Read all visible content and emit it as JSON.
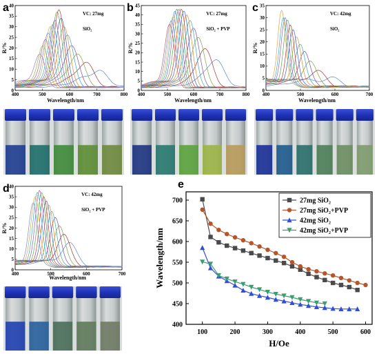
{
  "figure": {
    "panel_letters": [
      "a",
      "b",
      "c",
      "d",
      "e"
    ]
  },
  "chart_data": [
    {
      "id": "a",
      "type": "line",
      "annotation_line1": "VC: 27mg",
      "annotation_line2": "SiO₂",
      "xlabel": "Wavelength/nm",
      "ylabel": "R/%",
      "xlim": [
        400,
        800
      ],
      "ylim": [
        0,
        40
      ],
      "xticks": [
        "400",
        "500",
        "600",
        "700",
        "800"
      ],
      "yticks": [
        "0",
        "5",
        "10",
        "15",
        "20",
        "25",
        "30",
        "35",
        "40"
      ],
      "peaks": [
        {
          "x": 700,
          "y": 9,
          "w": 55
        },
        {
          "x": 655,
          "y": 13,
          "w": 45
        },
        {
          "x": 625,
          "y": 17,
          "w": 40
        },
        {
          "x": 605,
          "y": 21,
          "w": 36
        },
        {
          "x": 590,
          "y": 26,
          "w": 33
        },
        {
          "x": 578,
          "y": 30,
          "w": 30
        },
        {
          "x": 568,
          "y": 34,
          "w": 28
        },
        {
          "x": 560,
          "y": 38,
          "w": 26
        },
        {
          "x": 553,
          "y": 37,
          "w": 26
        },
        {
          "x": 545,
          "y": 33,
          "w": 26
        },
        {
          "x": 537,
          "y": 31,
          "w": 26
        },
        {
          "x": 528,
          "y": 30,
          "w": 26
        },
        {
          "x": 520,
          "y": 27,
          "w": 26
        },
        {
          "x": 510,
          "y": 24,
          "w": 26
        },
        {
          "x": 500,
          "y": 21,
          "w": 26
        },
        {
          "x": 488,
          "y": 17,
          "w": 28
        }
      ]
    },
    {
      "id": "b",
      "type": "line",
      "annotation_line1": "VC: 27mg",
      "annotation_line2": "SiO₂ + PVP",
      "xlabel": "Wavelength/nm",
      "ylabel": "R/%",
      "xlim": [
        400,
        800
      ],
      "ylim": [
        0,
        45
      ],
      "xticks": [
        "400",
        "500",
        "600",
        "700",
        "800"
      ],
      "yticks": [
        "0",
        "5",
        "10",
        "15",
        "20",
        "25",
        "30",
        "35",
        "40",
        "45"
      ],
      "peaks": [
        {
          "x": 680,
          "y": 16,
          "w": 50
        },
        {
          "x": 640,
          "y": 22,
          "w": 42
        },
        {
          "x": 615,
          "y": 28,
          "w": 36
        },
        {
          "x": 598,
          "y": 33,
          "w": 32
        },
        {
          "x": 585,
          "y": 37,
          "w": 30
        },
        {
          "x": 573,
          "y": 40,
          "w": 28
        },
        {
          "x": 562,
          "y": 42,
          "w": 27
        },
        {
          "x": 552,
          "y": 43,
          "w": 26
        },
        {
          "x": 543,
          "y": 43,
          "w": 26
        },
        {
          "x": 535,
          "y": 43,
          "w": 26
        },
        {
          "x": 528,
          "y": 42,
          "w": 26
        },
        {
          "x": 521,
          "y": 39,
          "w": 26
        },
        {
          "x": 514,
          "y": 37,
          "w": 26
        },
        {
          "x": 507,
          "y": 35,
          "w": 26
        }
      ]
    },
    {
      "id": "c",
      "type": "line",
      "annotation_line1": "VC: 42mg",
      "annotation_line2": "SiO₂",
      "xlabel": "Wavelength/nm",
      "ylabel": "R/%",
      "xlim": [
        400,
        700
      ],
      "ylim": [
        0,
        35
      ],
      "xticks": [
        "400",
        "500",
        "600",
        "700"
      ],
      "yticks": [
        "0",
        "5",
        "10",
        "15",
        "20",
        "25",
        "30",
        "35"
      ],
      "peaks": [
        {
          "x": 580,
          "y": 5,
          "w": 40
        },
        {
          "x": 545,
          "y": 8,
          "w": 32
        },
        {
          "x": 525,
          "y": 12,
          "w": 26
        },
        {
          "x": 510,
          "y": 16,
          "w": 22
        },
        {
          "x": 498,
          "y": 19,
          "w": 20
        },
        {
          "x": 488,
          "y": 22,
          "w": 18
        },
        {
          "x": 478,
          "y": 25,
          "w": 17
        },
        {
          "x": 470,
          "y": 27,
          "w": 16
        },
        {
          "x": 462,
          "y": 29,
          "w": 16
        },
        {
          "x": 455,
          "y": 30,
          "w": 16
        },
        {
          "x": 450,
          "y": 30,
          "w": 16
        },
        {
          "x": 445,
          "y": 33,
          "w": 16
        }
      ]
    },
    {
      "id": "d",
      "type": "line",
      "annotation_line1": "VC: 42mg",
      "annotation_line2": "SiO₂ + PVP",
      "xlabel": "Wavelength/nm",
      "ylabel": "R/%",
      "xlim": [
        400,
        700
      ],
      "ylim": [
        0,
        40
      ],
      "xticks": [
        "400",
        "500",
        "600",
        "700"
      ],
      "yticks": [
        "0",
        "5",
        "10",
        "15",
        "20",
        "25",
        "30",
        "35",
        "40"
      ],
      "peaks": [
        {
          "x": 550,
          "y": 13,
          "w": 28
        },
        {
          "x": 535,
          "y": 17,
          "w": 25
        },
        {
          "x": 523,
          "y": 21,
          "w": 22
        },
        {
          "x": 512,
          "y": 25,
          "w": 20
        },
        {
          "x": 502,
          "y": 28,
          "w": 19
        },
        {
          "x": 494,
          "y": 31,
          "w": 18
        },
        {
          "x": 487,
          "y": 33,
          "w": 18
        },
        {
          "x": 480,
          "y": 35,
          "w": 17
        },
        {
          "x": 474,
          "y": 37,
          "w": 17
        },
        {
          "x": 468,
          "y": 38,
          "w": 17
        },
        {
          "x": 462,
          "y": 37,
          "w": 17
        },
        {
          "x": 456,
          "y": 35,
          "w": 17
        },
        {
          "x": 450,
          "y": 32,
          "w": 17
        }
      ]
    },
    {
      "id": "e",
      "type": "line",
      "xlabel": "H/Oe",
      "ylabel": "Wavelength/nm",
      "xlim": [
        50,
        620
      ],
      "ylim": [
        400,
        720
      ],
      "xticks": [
        100,
        200,
        300,
        400,
        500,
        600
      ],
      "yticks": [
        400,
        450,
        500,
        550,
        600,
        650,
        700
      ],
      "series": [
        {
          "name": "27mg  SiO₂",
          "color": "#4a4a4a",
          "marker": "square",
          "x": [
            100,
            125,
            150,
            175,
            200,
            225,
            250,
            275,
            300,
            325,
            350,
            375,
            400,
            425,
            450,
            475,
            500,
            525,
            550,
            575
          ],
          "y": [
            702,
            611,
            598,
            590,
            584,
            578,
            572,
            566,
            560,
            554,
            548,
            540,
            532,
            522,
            514,
            507,
            500,
            495,
            490,
            483
          ]
        },
        {
          "name": "27mg  SiO₂+PVP",
          "color": "#b5552c",
          "marker": "circle",
          "x": [
            100,
            125,
            150,
            175,
            200,
            225,
            250,
            275,
            300,
            325,
            350,
            375,
            400,
            425,
            450,
            475,
            500,
            525,
            550,
            575,
            600
          ],
          "y": [
            677,
            643,
            628,
            618,
            610,
            603,
            596,
            588,
            580,
            572,
            563,
            550,
            540,
            533,
            528,
            523,
            518,
            512,
            506,
            500,
            495
          ]
        },
        {
          "name": "42mg  SiO₂",
          "color": "#2f4fd8",
          "marker": "triangle-up",
          "x": [
            100,
            125,
            150,
            175,
            200,
            225,
            250,
            275,
            300,
            325,
            350,
            375,
            400,
            425,
            450,
            475,
            500,
            525,
            550,
            575
          ],
          "y": [
            585,
            536,
            516,
            505,
            494,
            482,
            474,
            469,
            465,
            460,
            456,
            452,
            448,
            445,
            442,
            440,
            438,
            437,
            437,
            437
          ]
        },
        {
          "name": "42mg  SiO₂+PVP",
          "color": "#3e9c72",
          "marker": "triangle-down",
          "x": [
            100,
            125,
            150,
            175,
            200,
            225,
            250,
            275,
            300,
            325,
            350,
            375,
            400,
            425,
            450,
            475
          ],
          "y": [
            551,
            546,
            518,
            510,
            503,
            497,
            490,
            484,
            478,
            473,
            469,
            465,
            460,
            456,
            452,
            450
          ]
        }
      ]
    }
  ]
}
